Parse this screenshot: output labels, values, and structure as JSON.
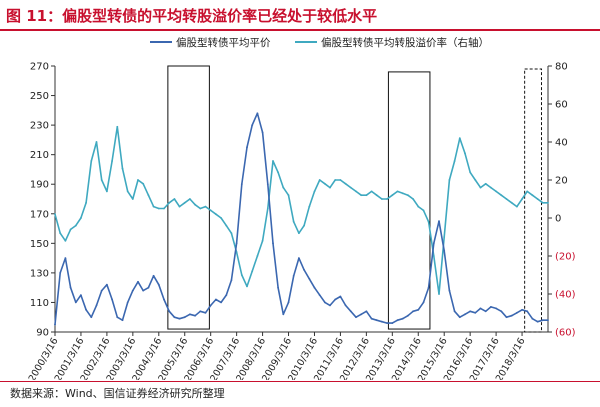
{
  "title": "图 11：偏股型转债的平均转股溢价率已经处于较低水平",
  "source": "数据来源：Wind、国信证券经济研究所整理",
  "colors": {
    "title": "#c8102e",
    "series_price": "#3b67b0",
    "series_premium": "#3fa9c0",
    "neg_tick": "#c8102e",
    "axis": "#333333"
  },
  "chart_data": {
    "type": "line",
    "x_tick_labels": [
      "2000/3/16",
      "2001/3/16",
      "2002/3/16",
      "2003/3/16",
      "2004/3/16",
      "2005/3/16",
      "2006/3/16",
      "2007/3/16",
      "2008/3/16",
      "2009/3/16",
      "2010/3/16",
      "2011/3/16",
      "2012/3/16",
      "2013/3/16",
      "2014/3/16",
      "2015/3/16",
      "2016/3/16",
      "2017/3/16",
      "2018/3/16"
    ],
    "y_left": {
      "min": 90,
      "max": 270,
      "ticks": [
        90,
        110,
        130,
        150,
        170,
        190,
        210,
        230,
        250,
        270
      ]
    },
    "y_right": {
      "min": -60,
      "max": 80,
      "ticks": [
        -60,
        -40,
        -20,
        0,
        20,
        40,
        60,
        80
      ],
      "tick_labels": [
        "(60)",
        "(40)",
        "(20)",
        "0",
        "20",
        "40",
        "60",
        "80"
      ]
    },
    "grid": false,
    "legend_position": "top",
    "series": [
      {
        "name": "偏股型转债平均平价",
        "axis": "left",
        "x": [
          2000.0,
          2000.2,
          2000.4,
          2000.6,
          2000.8,
          2001.0,
          2001.2,
          2001.4,
          2001.6,
          2001.8,
          2002.0,
          2002.2,
          2002.4,
          2002.6,
          2002.8,
          2003.0,
          2003.2,
          2003.4,
          2003.6,
          2003.8,
          2004.0,
          2004.2,
          2004.4,
          2004.6,
          2004.8,
          2005.0,
          2005.2,
          2005.4,
          2005.6,
          2005.8,
          2006.0,
          2006.2,
          2006.4,
          2006.6,
          2006.8,
          2007.0,
          2007.2,
          2007.4,
          2007.6,
          2007.8,
          2008.0,
          2008.2,
          2008.4,
          2008.6,
          2008.8,
          2009.0,
          2009.2,
          2009.4,
          2009.6,
          2009.8,
          2010.0,
          2010.2,
          2010.4,
          2010.6,
          2010.8,
          2011.0,
          2011.2,
          2011.4,
          2011.6,
          2011.8,
          2012.0,
          2012.2,
          2012.4,
          2012.6,
          2012.8,
          2013.0,
          2013.2,
          2013.4,
          2013.6,
          2013.8,
          2014.0,
          2014.2,
          2014.4,
          2014.6,
          2014.8,
          2015.0,
          2015.2,
          2015.4,
          2015.6,
          2015.8,
          2016.0,
          2016.2,
          2016.4,
          2016.6,
          2016.8,
          2017.0,
          2017.2,
          2017.4,
          2017.6,
          2017.8,
          2018.0,
          2018.2,
          2018.4,
          2018.6,
          2018.8,
          2019.0
        ],
        "values": [
          95,
          130,
          140,
          120,
          110,
          115,
          105,
          100,
          108,
          118,
          122,
          112,
          100,
          98,
          110,
          118,
          124,
          118,
          120,
          128,
          122,
          112,
          104,
          100,
          99,
          100,
          102,
          101,
          104,
          103,
          108,
          112,
          110,
          115,
          125,
          150,
          190,
          215,
          230,
          238,
          225,
          190,
          150,
          120,
          102,
          110,
          128,
          140,
          132,
          126,
          120,
          115,
          110,
          108,
          112,
          114,
          108,
          104,
          100,
          102,
          104,
          99,
          98,
          97,
          96,
          96,
          98,
          99,
          101,
          104,
          105,
          110,
          120,
          150,
          165,
          145,
          118,
          104,
          100,
          102,
          104,
          103,
          106,
          104,
          107,
          106,
          104,
          100,
          101,
          103,
          105,
          104,
          99,
          97,
          98,
          98
        ]
      },
      {
        "name": "偏股型转债平均转股溢价率（右轴）",
        "axis": "right",
        "x": [
          2000.0,
          2000.2,
          2000.4,
          2000.6,
          2000.8,
          2001.0,
          2001.2,
          2001.4,
          2001.6,
          2001.8,
          2002.0,
          2002.2,
          2002.4,
          2002.6,
          2002.8,
          2003.0,
          2003.2,
          2003.4,
          2003.6,
          2003.8,
          2004.0,
          2004.2,
          2004.4,
          2004.6,
          2004.8,
          2005.0,
          2005.2,
          2005.4,
          2005.6,
          2005.8,
          2006.0,
          2006.2,
          2006.4,
          2006.6,
          2006.8,
          2007.0,
          2007.2,
          2007.4,
          2007.6,
          2007.8,
          2008.0,
          2008.2,
          2008.4,
          2008.6,
          2008.8,
          2009.0,
          2009.2,
          2009.4,
          2009.6,
          2009.8,
          2010.0,
          2010.2,
          2010.4,
          2010.6,
          2010.8,
          2011.0,
          2011.2,
          2011.4,
          2011.6,
          2011.8,
          2012.0,
          2012.2,
          2012.4,
          2012.6,
          2012.8,
          2013.0,
          2013.2,
          2013.4,
          2013.6,
          2013.8,
          2014.0,
          2014.2,
          2014.4,
          2014.6,
          2014.8,
          2015.0,
          2015.2,
          2015.4,
          2015.6,
          2015.8,
          2016.0,
          2016.2,
          2016.4,
          2016.6,
          2016.8,
          2017.0,
          2017.2,
          2017.4,
          2017.6,
          2017.8,
          2018.0,
          2018.2,
          2018.4,
          2018.6,
          2018.8,
          2019.0
        ],
        "values": [
          2,
          -8,
          -12,
          -6,
          -4,
          0,
          8,
          30,
          40,
          20,
          14,
          30,
          48,
          26,
          14,
          10,
          20,
          18,
          12,
          6,
          5,
          5,
          8,
          10,
          6,
          8,
          10,
          7,
          5,
          6,
          4,
          2,
          0,
          -4,
          -8,
          -18,
          -30,
          -36,
          -28,
          -20,
          -12,
          5,
          30,
          24,
          16,
          12,
          -2,
          -8,
          -4,
          6,
          14,
          20,
          18,
          16,
          20,
          20,
          18,
          16,
          14,
          12,
          12,
          14,
          12,
          10,
          10,
          12,
          14,
          13,
          12,
          10,
          6,
          4,
          -2,
          -20,
          -40,
          -10,
          20,
          30,
          42,
          34,
          24,
          20,
          16,
          18,
          16,
          14,
          12,
          10,
          8,
          6,
          10,
          14,
          12,
          10,
          8,
          8
        ]
      }
    ],
    "annotation_boxes": [
      {
        "x_start": 2004.35,
        "x_end": 2005.95,
        "y_left_min": 92,
        "y_left_max": 270,
        "style": "solid"
      },
      {
        "x_start": 2012.85,
        "x_end": 2014.45,
        "y_left_min": 92,
        "y_left_max": 266,
        "style": "solid"
      },
      {
        "x_start": 2018.1,
        "x_end": 2018.75,
        "y_left_min": 90,
        "y_left_max": 268,
        "style": "dashed"
      }
    ]
  }
}
